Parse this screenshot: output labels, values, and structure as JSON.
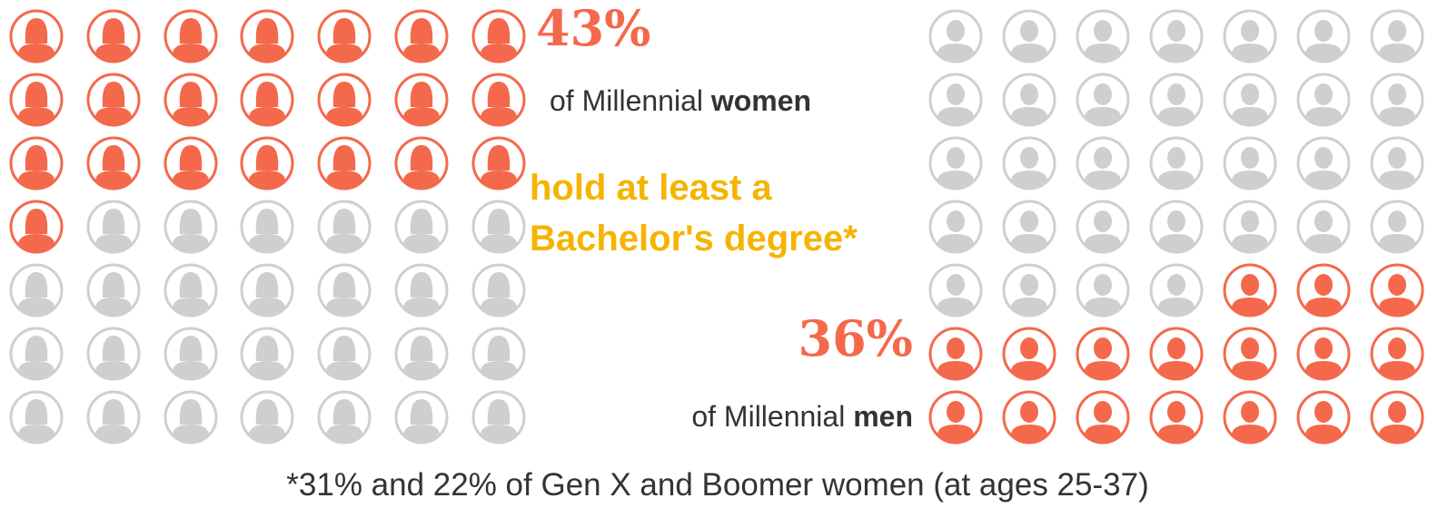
{
  "chart_data": {
    "type": "pictogram",
    "series": [
      {
        "name": "women",
        "label_prefix": "of Millennial",
        "values": [
          43
        ],
        "value_labels": [
          "43%"
        ],
        "icons_filled": 22,
        "icons_total": 49,
        "color": "#f4694b"
      },
      {
        "name": "men",
        "label_prefix": "of Millennial",
        "values": [
          36
        ],
        "value_labels": [
          "36%"
        ],
        "icons_filled": 17,
        "icons_total": 49,
        "color": "#f4694b"
      }
    ],
    "empty_color": "#cfcfcf",
    "annotation": [
      "hold at least a",
      "Bachelor's degree*"
    ],
    "annotation_color": "#f5b400",
    "footnote": "*31% and 22% of Gen X and Boomer women (at ages 25-37)"
  }
}
